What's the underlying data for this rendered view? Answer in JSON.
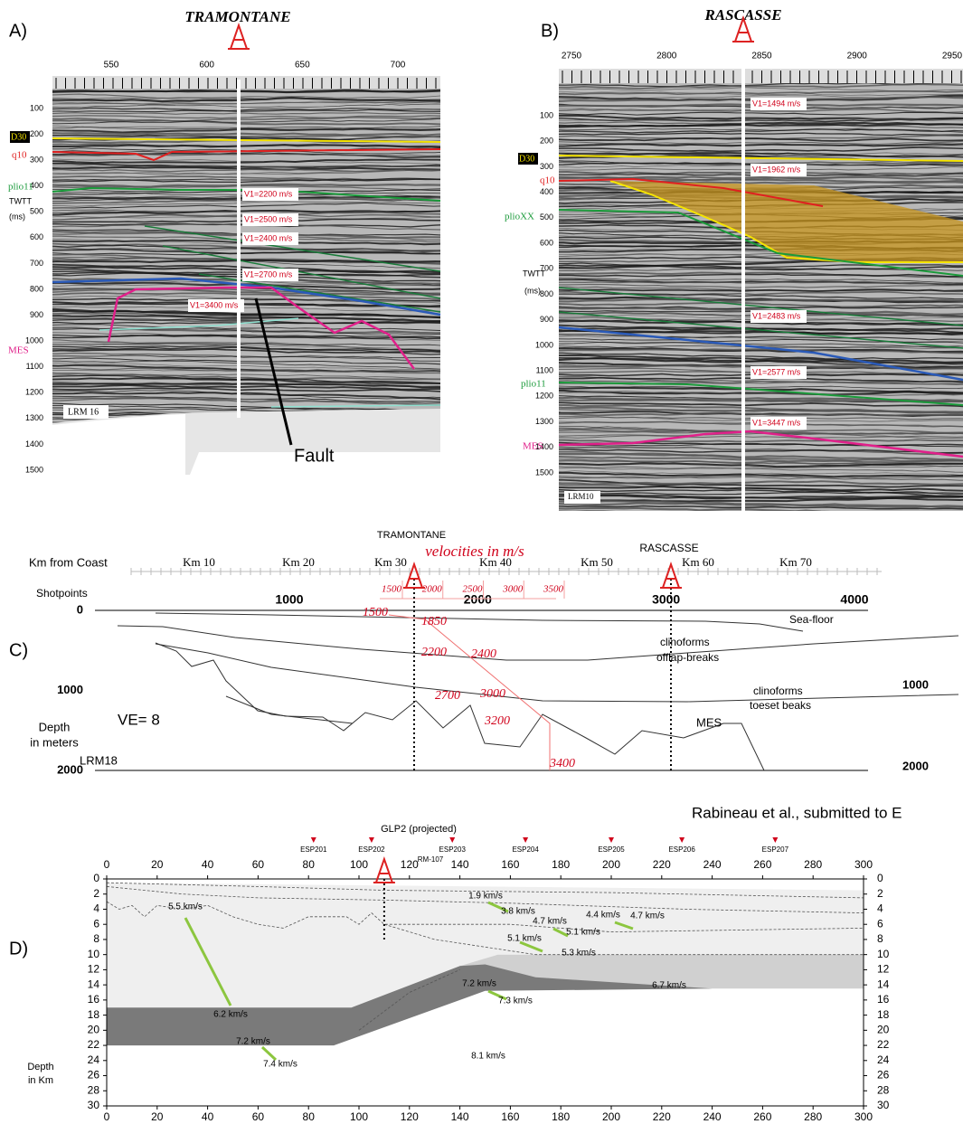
{
  "panel_a": {
    "letter": "A)",
    "title": "TRAMONTANE",
    "shotpoints": [
      550,
      600,
      650,
      700
    ],
    "twtt": [
      100,
      200,
      300,
      400,
      500,
      600,
      700,
      800,
      900,
      1000,
      1100,
      1200,
      1300,
      1400,
      1500
    ],
    "horizons": {
      "d30": "D30",
      "q10": "q10",
      "plio11": "plio11",
      "twtt_unit": "TWTT",
      "ms": "(ms)",
      "mes": "MES"
    },
    "velocities": [
      "V1=2200 m/s",
      "V1=2500 m/s",
      "V1=2400 m/s",
      "V1=2700 m/s",
      "V1=3400 m/s"
    ],
    "line": "LRM 16",
    "fault": "Fault"
  },
  "panel_b": {
    "letter": "B)",
    "title": "RASCASSE",
    "shotpoints": [
      2750,
      2800,
      2850,
      2900,
      2950
    ],
    "twtt": [
      100,
      200,
      300,
      400,
      500,
      600,
      700,
      800,
      900,
      1000,
      1100,
      1200,
      1300,
      1400,
      1500
    ],
    "horizons": {
      "d30": "D30",
      "q10": "q10",
      "plioxx": "plioXX",
      "twtt_unit": "TWTT",
      "ms": "(ms)",
      "plio11": "plio11",
      "mes": "MES"
    },
    "velocities": [
      "V1=1494 m/s",
      "V1=1962 m/s",
      "V1=2483 m/s",
      "V1=2577 m/s",
      "V1=3447 m/s"
    ],
    "line": "LRM10"
  },
  "panel_c": {
    "letter": "C)",
    "tramontane": "TRAMONTANE",
    "rascasse": "RASCASSE",
    "velocity_title": "velocities in m/s",
    "km_label": "Km from Coast",
    "km": [
      "Km 10",
      "Km 20",
      "Km 30",
      "Km 40",
      "Km 50",
      "Km 60",
      "Km 70"
    ],
    "shotpoints_label": "Shotpoints",
    "shotpoints": [
      1000,
      2000,
      3000,
      4000
    ],
    "depth_left": [
      0,
      1000,
      2000
    ],
    "depth_right": [
      1000,
      2000
    ],
    "scale_velocities": [
      1500,
      2000,
      2500,
      3000,
      3500
    ],
    "velocities": [
      1500,
      1850,
      2200,
      2400,
      2700,
      3000,
      3200,
      3400
    ],
    "labels": {
      "sea_floor": "Sea-floor",
      "clino1_a": "clinoforms",
      "clino1_b": "offlap-breaks",
      "clino2_a": "clinoforms",
      "clino2_b": "toeset beaks",
      "mes": "MES"
    },
    "ve": "VE= 8",
    "depth_label": [
      "Depth",
      "in meters"
    ],
    "line": "LRM18"
  },
  "panel_d": {
    "letter": "D)",
    "citation": "Rabineau et al., submitted to E",
    "glp2": "GLP2 (projected)",
    "rm": "RM-107",
    "esp": [
      "ESP201",
      "ESP202",
      "ESP203",
      "ESP204",
      "ESP205",
      "ESP206",
      "ESP207"
    ],
    "x_ticks": [
      0,
      20,
      40,
      60,
      80,
      100,
      120,
      140,
      160,
      180,
      200,
      220,
      240,
      260,
      280,
      300
    ],
    "depth_ticks": [
      0,
      2,
      4,
      6,
      8,
      10,
      12,
      14,
      16,
      18,
      20,
      22,
      24,
      26,
      28,
      30
    ],
    "depth_label": [
      "Depth",
      "in Km"
    ],
    "velocities": [
      "5.5 km/s",
      "6.2 km/s",
      "7.2 km/s",
      "7.4 km/s",
      "1.9 km/s",
      "3.8 km/s",
      "4.7 km/s",
      "4.4 km/s",
      "4.7 km/s",
      "5.1 km/s",
      "5.1 km/s",
      "5.3 km/s",
      "7.2 km/s",
      "7.3 km/s",
      "6.7 km/s",
      "8.1 km/s"
    ]
  }
}
